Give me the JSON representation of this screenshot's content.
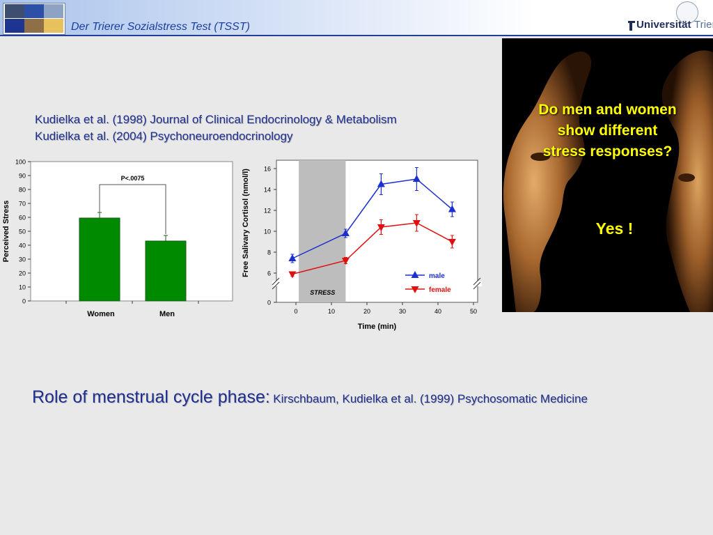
{
  "header": {
    "title": "Der Trierer Sozialstress Test (TSST)",
    "university_bold": "Universität",
    "university_light": "Trier",
    "logo_tiles": [
      {
        "color": "#3d4e6e"
      },
      {
        "color": "#2c4fa8"
      },
      {
        "color": "#8ea2c4"
      },
      {
        "color": "#1d3590"
      },
      {
        "color": "#8f6f48"
      },
      {
        "color": "#e7c25c"
      }
    ]
  },
  "references": {
    "line1": "Kudielka et al. (1998) Journal of Clinical Endocrinology & Metabolism",
    "line2": "Kudielka et al. (2004) Psychoneuroendocrinology"
  },
  "photo": {
    "question": "Do men and women show different stress responses?",
    "answer": "Yes !"
  },
  "bottom": {
    "main": "Role of menstrual cycle phase:",
    "ref": "Kirschbaum, Kudielka et al. (1999) Psychosomatic Medicine"
  },
  "colors": {
    "bar": "#008a00",
    "male": "#1c2fd1",
    "female": "#e01010",
    "stress_band": "#bdbdbd"
  },
  "chart_data": [
    {
      "type": "bar",
      "categories": [
        "Women",
        "Men"
      ],
      "values": [
        59.5,
        43
      ],
      "errors": [
        4,
        4
      ],
      "ylabel": "Perceived Stress",
      "ylim": [
        0,
        100
      ],
      "yticks": [
        0,
        10,
        20,
        30,
        40,
        50,
        60,
        70,
        80,
        90,
        100
      ],
      "annotation": "P<.0075",
      "grid": false
    },
    {
      "type": "line",
      "xlabel": "Time (min)",
      "ylabel": "Free Salivary Cortisol (nmol/l)",
      "x_ticks": [
        0,
        10,
        20,
        30,
        40,
        50
      ],
      "y_ticks": [
        6,
        8,
        10,
        12,
        14,
        16
      ],
      "y_zero_label": "0",
      "xlim": [
        -5,
        50
      ],
      "ylim": [
        5,
        16.5
      ],
      "stress_band": {
        "label": "STRESS",
        "x_start": 1,
        "x_end": 14
      },
      "legend_position": "bottom-right",
      "grid": false,
      "series": [
        {
          "name": "male",
          "x": [
            -1,
            14,
            24,
            34,
            44
          ],
          "values": [
            7.4,
            9.8,
            14.5,
            15.0,
            12.1
          ],
          "errors": [
            0.4,
            0.4,
            1.0,
            1.1,
            0.7
          ]
        },
        {
          "name": "female",
          "x": [
            -1,
            14,
            24,
            34,
            44
          ],
          "values": [
            5.9,
            7.2,
            10.4,
            10.8,
            9.0
          ],
          "errors": [
            0.2,
            0.3,
            0.7,
            0.8,
            0.6
          ]
        }
      ]
    }
  ]
}
